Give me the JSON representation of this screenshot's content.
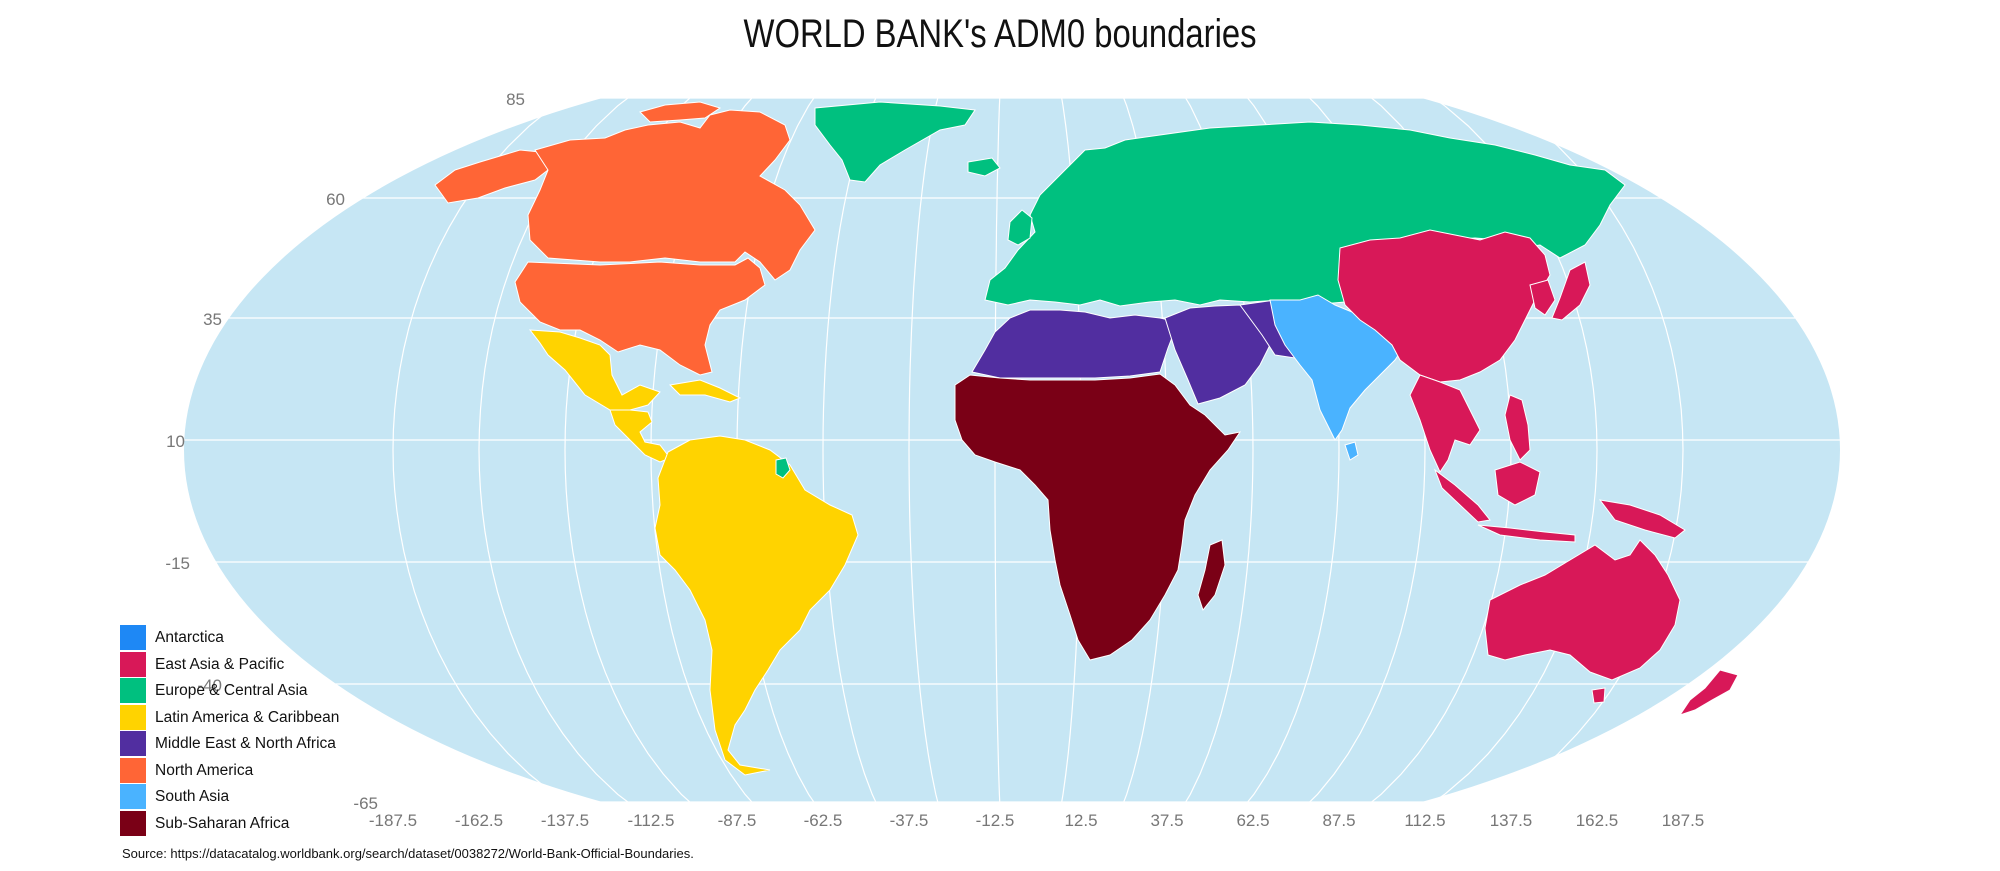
{
  "title": "WORLD BANK's ADM0 boundaries",
  "source": "Source: https://datacatalog.worldbank.org/search/dataset/0038272/World-Bank-Official-Boundaries.",
  "ocean_color": "#c6e6f4",
  "graticule_color": "#ffffff",
  "lat_ticks": [
    "85",
    "60",
    "35",
    "10",
    "-15",
    "-40",
    "-65"
  ],
  "lon_ticks": [
    "-187.5",
    "-162.5",
    "-137.5",
    "-112.5",
    "-87.5",
    "-62.5",
    "-37.5",
    "-12.5",
    "12.5",
    "37.5",
    "62.5",
    "87.5",
    "112.5",
    "137.5",
    "162.5",
    "187.5"
  ],
  "legend": [
    {
      "label": "Antarctica",
      "color": "#1e88f5"
    },
    {
      "label": "East Asia & Pacific",
      "color": "#d81858"
    },
    {
      "label": "Europe & Central Asia",
      "color": "#00c07f"
    },
    {
      "label": "Latin America & Caribbean",
      "color": "#ffd300"
    },
    {
      "label": "Middle East & North Africa",
      "color": "#512ea0"
    },
    {
      "label": "North America",
      "color": "#ff6536"
    },
    {
      "label": "South Asia",
      "color": "#4ab3ff"
    },
    {
      "label": "Sub-Saharan Africa",
      "color": "#7a0016"
    }
  ]
}
